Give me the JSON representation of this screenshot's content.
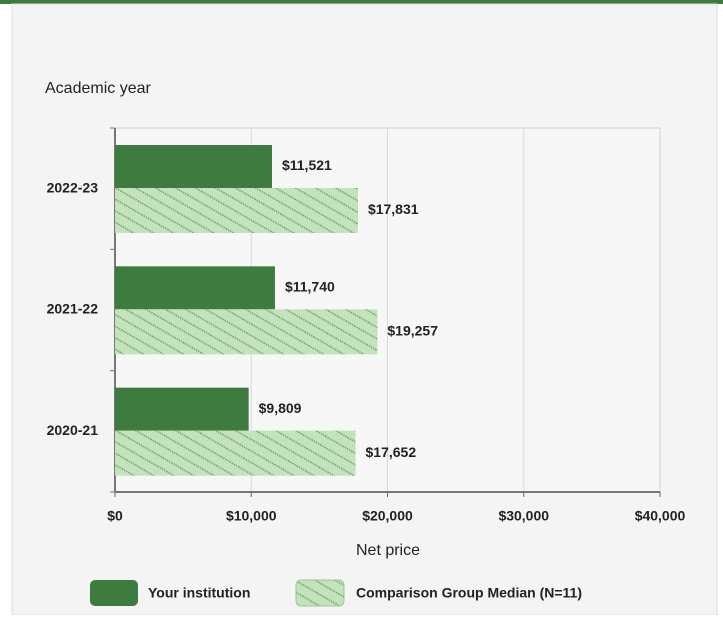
{
  "chart_data": {
    "type": "bar",
    "orientation": "horizontal",
    "title": "Academic year",
    "xlabel": "Net price",
    "categories": [
      "2022-23",
      "2021-22",
      "2020-21"
    ],
    "series": [
      {
        "name": "Your institution",
        "color": "#3e7b3e",
        "values": [
          11521,
          11740,
          9809
        ],
        "value_labels": [
          "$11,521",
          "$11,740",
          "$9,809"
        ]
      },
      {
        "name": "Comparison Group Median (N=11)",
        "color": "#c4e2bc",
        "hatch": true,
        "values": [
          17831,
          19257,
          17652
        ],
        "value_labels": [
          "$17,831",
          "$19,257",
          "$17,652"
        ]
      }
    ],
    "xlim": [
      0,
      40000
    ],
    "xticks": [
      {
        "value": 0,
        "label": "$0"
      },
      {
        "value": 10000,
        "label": "$10,000"
      },
      {
        "value": 20000,
        "label": "$20,000"
      },
      {
        "value": 30000,
        "label": "$30,000"
      },
      {
        "value": 40000,
        "label": "$40,000"
      }
    ],
    "grid": true
  }
}
